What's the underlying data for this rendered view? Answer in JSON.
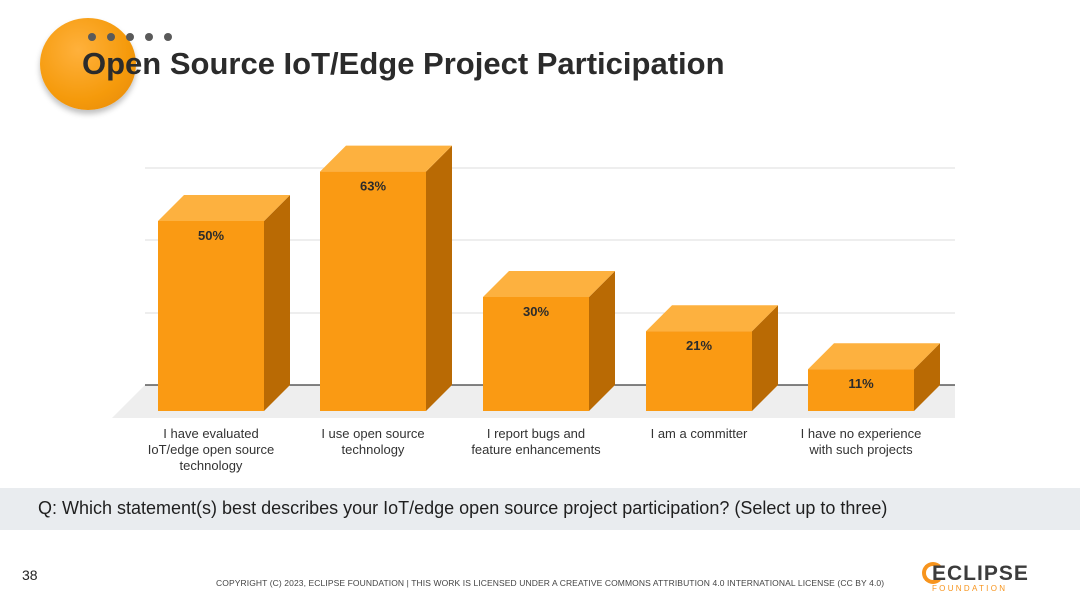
{
  "slide": {
    "title": "Open Source IoT/Edge Project Participation",
    "question": "Q: Which statement(s) best describes your IoT/edge open source project participation? (Select up to three)",
    "page_number": "38",
    "copyright": "COPYRIGHT (C) 2023, ECLIPSE FOUNDATION | THIS WORK IS LICENSED UNDER A CREATIVE COMMONS ATTRIBUTION 4.0 INTERNATIONAL LICENSE (CC BY 4.0)",
    "logo": {
      "word": "ECLIPSE",
      "sub": "FOUNDATION"
    }
  },
  "colors": {
    "bar_front": "#fa9a13",
    "bar_top": "#fdb13f",
    "bar_side": "#b96a04",
    "accent": "#f7941d"
  },
  "chart_data": {
    "type": "bar",
    "style": "3d",
    "categories": [
      [
        "I have evaluated",
        "IoT/edge open source",
        "technology"
      ],
      [
        "I use open source",
        "technology"
      ],
      [
        "I report bugs and",
        "feature enhancements"
      ],
      [
        "I am a committer"
      ],
      [
        "I have no experience",
        "with such projects"
      ]
    ],
    "values": [
      50,
      63,
      30,
      21,
      11
    ],
    "data_labels": [
      "50%",
      "63%",
      "30%",
      "21%",
      "11%"
    ],
    "unit": "%",
    "ylim": [
      0,
      70
    ],
    "grid": true
  }
}
